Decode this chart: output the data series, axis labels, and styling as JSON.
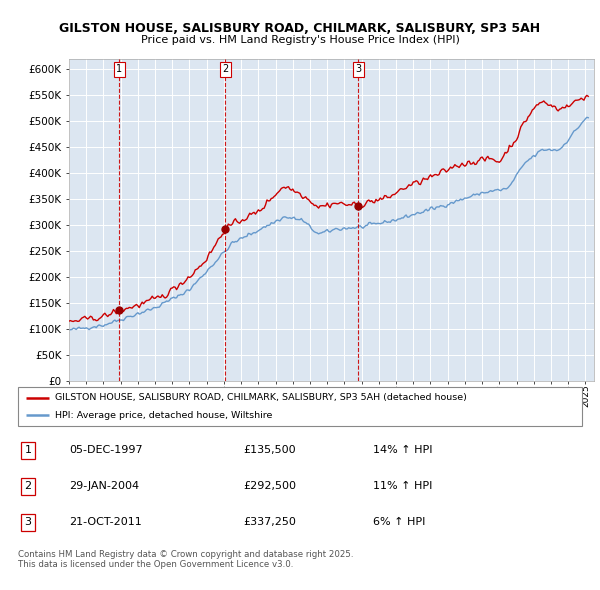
{
  "title": "GILSTON HOUSE, SALISBURY ROAD, CHILMARK, SALISBURY, SP3 5AH",
  "subtitle": "Price paid vs. HM Land Registry's House Price Index (HPI)",
  "ylim": [
    0,
    620000
  ],
  "yticks": [
    0,
    50000,
    100000,
    150000,
    200000,
    250000,
    300000,
    350000,
    400000,
    450000,
    500000,
    550000,
    600000
  ],
  "ytick_labels": [
    "£0",
    "£50K",
    "£100K",
    "£150K",
    "£200K",
    "£250K",
    "£300K",
    "£350K",
    "£400K",
    "£450K",
    "£500K",
    "£550K",
    "£600K"
  ],
  "xlim_start": 1995,
  "xlim_end": 2025.5,
  "background_color": "#ffffff",
  "plot_bg_color": "#dce6f1",
  "grid_color": "#ffffff",
  "transaction_dates": [
    1997.917,
    2004.083,
    2011.8
  ],
  "transaction_prices": [
    135500,
    292500,
    337250
  ],
  "transaction_labels": [
    "1",
    "2",
    "3"
  ],
  "legend_house_label": "GILSTON HOUSE, SALISBURY ROAD, CHILMARK, SALISBURY, SP3 5AH (detached house)",
  "legend_hpi_label": "HPI: Average price, detached house, Wiltshire",
  "table_data": [
    {
      "num": "1",
      "date": "05-DEC-1997",
      "price": "£135,500",
      "change": "14% ↑ HPI"
    },
    {
      "num": "2",
      "date": "29-JAN-2004",
      "price": "£292,500",
      "change": "11% ↑ HPI"
    },
    {
      "num": "3",
      "date": "21-OCT-2011",
      "price": "£337,250",
      "change": "6% ↑ HPI"
    }
  ],
  "footer": "Contains HM Land Registry data © Crown copyright and database right 2025.\nThis data is licensed under the Open Government Licence v3.0.",
  "line_color_house": "#cc0000",
  "line_color_hpi": "#6699cc",
  "vline_color": "#cc0000",
  "marker_color_house": "#990000"
}
